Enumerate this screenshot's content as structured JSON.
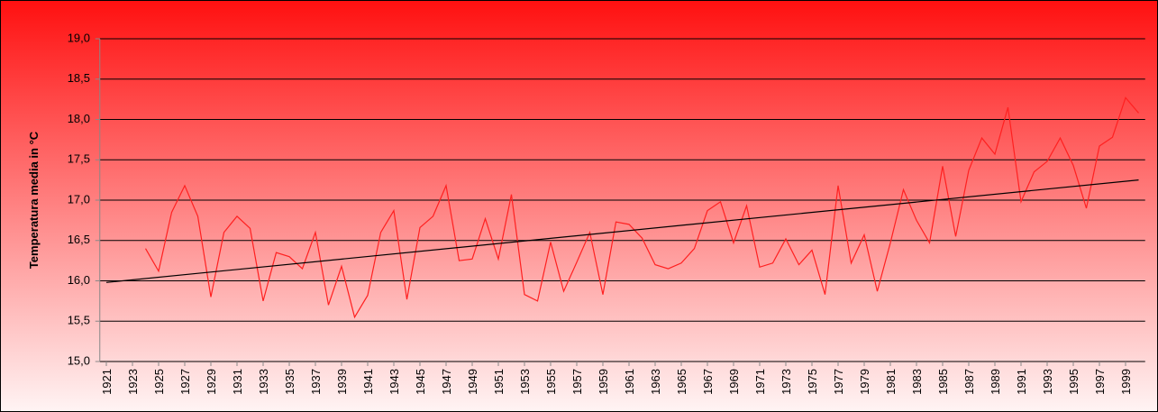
{
  "chart_data": {
    "type": "line",
    "ylabel": "Temperatura media in °C",
    "series": [
      {
        "color": "#ff2020",
        "x": [
          1924,
          1925,
          1926,
          1927,
          1928,
          1929,
          1930,
          1931,
          1932,
          1933,
          1934,
          1935,
          1936,
          1937,
          1938,
          1939,
          1940,
          1941,
          1942,
          1943,
          1944,
          1945,
          1946,
          1947,
          1948,
          1949,
          1950,
          1951,
          1952,
          1953,
          1954,
          1955,
          1956,
          1957,
          1958,
          1959,
          1960,
          1961,
          1962,
          1963,
          1964,
          1965,
          1966,
          1967,
          1968,
          1969,
          1970,
          1971,
          1972,
          1973,
          1974,
          1975,
          1976,
          1977,
          1978,
          1979,
          1980,
          1981,
          1982,
          1983,
          1984,
          1985,
          1986,
          1987,
          1988,
          1989,
          1990,
          1991,
          1992,
          1993,
          1994,
          1995,
          1996,
          1997,
          1998,
          1999,
          2000
        ],
        "values": [
          16.4,
          16.12,
          16.85,
          17.18,
          16.8,
          15.8,
          16.6,
          16.8,
          16.65,
          15.75,
          16.35,
          16.3,
          16.15,
          16.6,
          15.7,
          16.18,
          15.55,
          15.82,
          16.6,
          16.87,
          15.77,
          16.66,
          16.8,
          17.18,
          16.25,
          16.27,
          16.77,
          16.27,
          17.07,
          15.83,
          15.75,
          16.48,
          15.87,
          16.23,
          16.6,
          15.83,
          16.73,
          16.7,
          16.53,
          16.2,
          16.15,
          16.22,
          16.4,
          16.87,
          16.98,
          16.47,
          16.93,
          16.17,
          16.22,
          16.52,
          16.2,
          16.38,
          15.83,
          17.18,
          16.22,
          16.57,
          15.87,
          16.47,
          17.13,
          16.75,
          16.47,
          17.42,
          16.55,
          17.37,
          17.77,
          17.57,
          18.15,
          16.98,
          17.35,
          17.48,
          17.77,
          17.43,
          16.9,
          17.67,
          17.78,
          18.27,
          18.08
        ]
      },
      {
        "color": "#000000",
        "x": [
          1921,
          2000
        ],
        "values": [
          15.98,
          17.25
        ]
      }
    ],
    "xlim": [
      1920.5,
      2000.5
    ],
    "xticks": [
      1921,
      1923,
      1925,
      1927,
      1929,
      1931,
      1933,
      1935,
      1937,
      1939,
      1941,
      1943,
      1945,
      1947,
      1949,
      1951,
      1953,
      1955,
      1957,
      1959,
      1961,
      1963,
      1965,
      1967,
      1969,
      1971,
      1973,
      1975,
      1977,
      1979,
      1981,
      1983,
      1985,
      1987,
      1989,
      1991,
      1993,
      1995,
      1997,
      1999
    ],
    "ylim": [
      15,
      19
    ],
    "yticks": [
      {
        "value": 15,
        "label": "15,0"
      },
      {
        "value": 15.5,
        "label": "15,5"
      },
      {
        "value": 16,
        "label": "16,0"
      },
      {
        "value": 16.5,
        "label": "16,5"
      },
      {
        "value": 17,
        "label": "17,0"
      },
      {
        "value": 17.5,
        "label": "17,5"
      },
      {
        "value": 18,
        "label": "18,0"
      },
      {
        "value": 18.5,
        "label": "18,5"
      },
      {
        "value": 19,
        "label": "19,0"
      }
    ],
    "grid": true
  }
}
